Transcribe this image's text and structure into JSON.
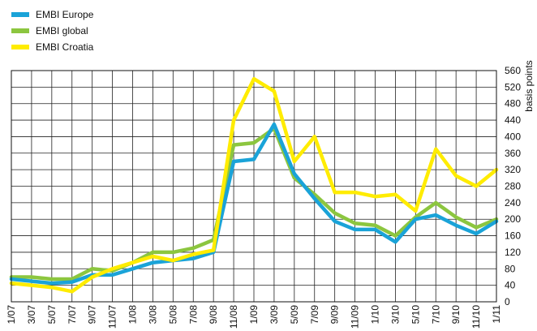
{
  "chart_data": {
    "type": "line",
    "ylabel": "basis points",
    "ylim": [
      0,
      560
    ],
    "yticks": [
      0,
      40,
      80,
      120,
      160,
      200,
      240,
      280,
      320,
      360,
      400,
      440,
      480,
      520,
      560
    ],
    "y_axis_side": "right",
    "grid": true,
    "legend_position": "top-left",
    "x": [
      "1/07",
      "3/07",
      "5/07",
      "7/07",
      "9/07",
      "11/07",
      "1/08",
      "3/08",
      "5/08",
      "7/08",
      "9/08",
      "11/08",
      "1/09",
      "3/09",
      "5/09",
      "7/09",
      "9/09",
      "11/09",
      "1/10",
      "3/10",
      "5/10",
      "7/10",
      "9/10",
      "11/10",
      "1/11"
    ],
    "series": [
      {
        "name": "EMBI Europe",
        "color": "#1aa3d8",
        "values": [
          55,
          50,
          45,
          48,
          65,
          65,
          80,
          95,
          100,
          105,
          120,
          340,
          345,
          430,
          310,
          250,
          195,
          175,
          175,
          145,
          200,
          210,
          185,
          165,
          195
        ]
      },
      {
        "name": "EMBI global",
        "color": "#8cc63f",
        "values": [
          60,
          60,
          55,
          55,
          80,
          75,
          95,
          120,
          120,
          130,
          150,
          380,
          385,
          420,
          300,
          260,
          215,
          190,
          185,
          160,
          205,
          240,
          205,
          180,
          200
        ]
      },
      {
        "name": "EMBI Croatia",
        "color": "#ffec00",
        "values": [
          45,
          40,
          35,
          25,
          60,
          80,
          95,
          110,
          100,
          115,
          125,
          440,
          540,
          510,
          340,
          400,
          265,
          265,
          255,
          260,
          220,
          370,
          305,
          280,
          320
        ]
      }
    ]
  }
}
